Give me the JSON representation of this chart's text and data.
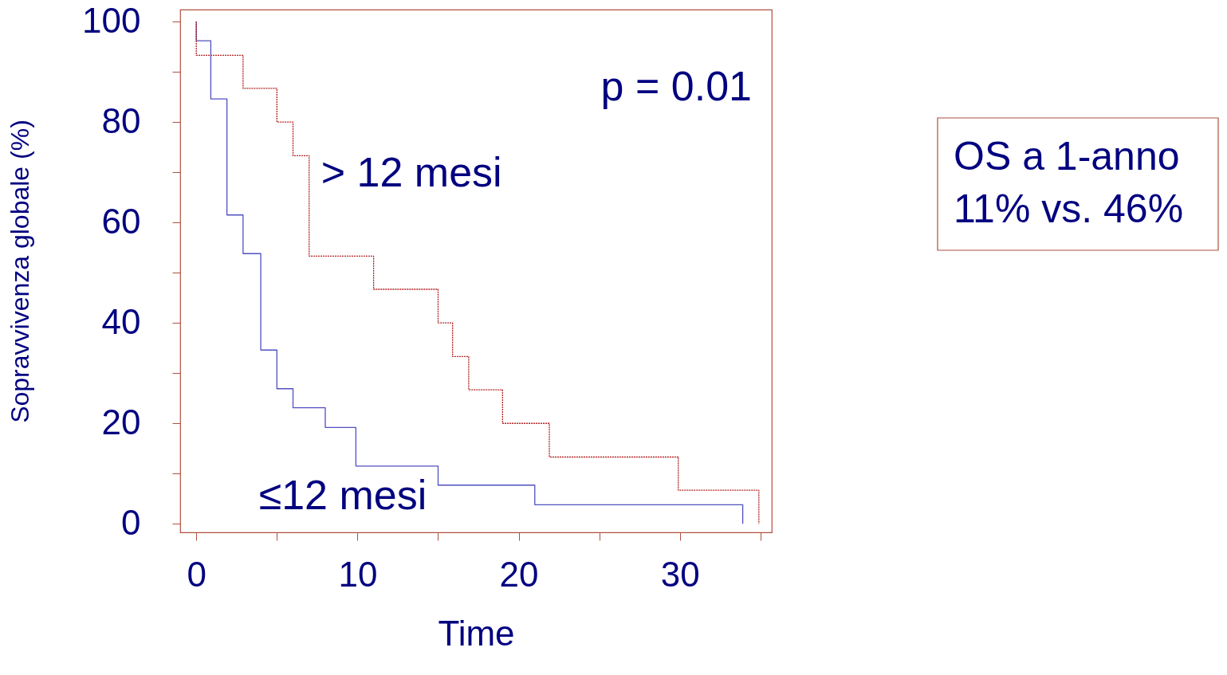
{
  "chart_data": {
    "type": "step",
    "xlabel": "Time",
    "ylabel": "Sopravvivenza globale (%)",
    "xlim": [
      -1,
      35.7
    ],
    "ylim": [
      -1.7,
      102.4
    ],
    "xticks": [
      0,
      {
        "value": 5,
        "label": null
      },
      10,
      {
        "value": 15,
        "label": null
      },
      20,
      {
        "value": 25,
        "label": null
      },
      30,
      {
        "value": 35,
        "label": null
      }
    ],
    "yticks": [
      0,
      {
        "value": 10,
        "label": null
      },
      20,
      {
        "value": 30,
        "label": null
      },
      40,
      {
        "value": 50,
        "label": null
      },
      60,
      {
        "value": 70,
        "label": null
      },
      80,
      {
        "value": 90,
        "label": null
      },
      100
    ],
    "grid": false,
    "legend": false,
    "series": [
      {
        "name": "> 12 mesi",
        "color": "#b22222",
        "line_style": "dashed",
        "x": [
          0,
          0,
          2.9,
          5.0,
          6.0,
          7.0,
          11.0,
          15.0,
          15.9,
          16.9,
          19.0,
          21.9,
          29.9,
          34.9
        ],
        "values": [
          100,
          93.3,
          86.7,
          80.0,
          73.3,
          53.3,
          46.7,
          40.0,
          33.3,
          26.7,
          20.0,
          13.3,
          6.7,
          0
        ]
      },
      {
        "name": "≤12 mesi",
        "color": "#5050c0",
        "line_style": "solid",
        "x": [
          0,
          0,
          0.9,
          1.9,
          2.9,
          4.0,
          5.0,
          6.0,
          8.0,
          9.9,
          15.0,
          21.0,
          33.9
        ],
        "values": [
          100,
          96.2,
          84.6,
          61.5,
          53.8,
          34.6,
          26.9,
          23.1,
          19.2,
          11.5,
          7.7,
          3.8,
          0
        ]
      }
    ],
    "annotations": [
      "p = 0.01",
      "OS a 1-anno\n11% vs. 46%"
    ]
  }
}
